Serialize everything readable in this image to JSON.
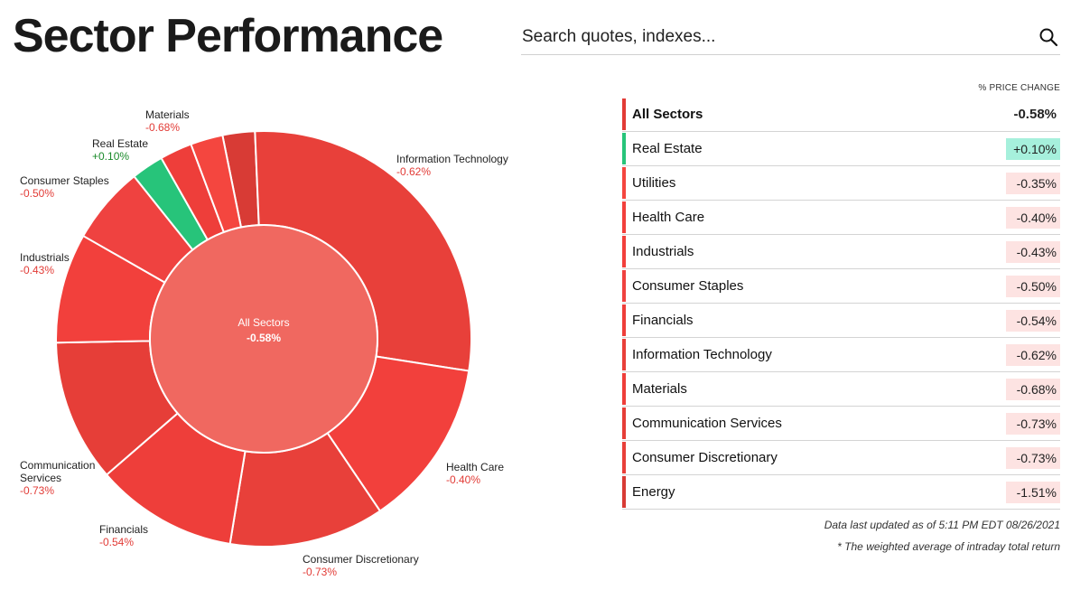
{
  "page": {
    "title": "Sector Performance"
  },
  "search": {
    "placeholder": "Search quotes, indexes..."
  },
  "chart_data": {
    "type": "pie",
    "center": {
      "label": "All Sectors",
      "value": "-0.58%"
    },
    "categories": [
      "Energy",
      "Information Technology",
      "Health Care",
      "Consumer Discretionary",
      "Financials",
      "Communication Services",
      "Industrials",
      "Consumer Staples",
      "Real Estate",
      "Materials",
      "Utilities"
    ],
    "values": [
      2.5,
      28.0,
      13.0,
      12.0,
      11.0,
      11.0,
      8.5,
      6.0,
      2.5,
      2.5,
      2.5
    ],
    "changes": [
      "-1.51%",
      "-0.62%",
      "-0.40%",
      "-0.73%",
      "-0.54%",
      "-0.73%",
      "-0.43%",
      "-0.50%",
      "+0.10%",
      "-0.68%",
      "-0.35%"
    ],
    "labels": [
      {
        "name": "",
        "value": ""
      },
      {
        "name": "Information Technology",
        "value": "-0.62%"
      },
      {
        "name": "Health Care",
        "value": "-0.40%"
      },
      {
        "name": "Consumer Discretionary",
        "value": "-0.73%"
      },
      {
        "name": "Financials",
        "value": "-0.54%"
      },
      {
        "name": "Communication Services",
        "value": "-0.73%"
      },
      {
        "name": "Industrials",
        "value": "-0.43%"
      },
      {
        "name": "Consumer Staples",
        "value": "-0.50%"
      },
      {
        "name": "Real Estate",
        "value": "+0.10%"
      },
      {
        "name": "Materials",
        "value": "-0.68%"
      },
      {
        "name": "",
        "value": ""
      }
    ],
    "colors": [
      "#d83b35",
      "#e8403a",
      "#f2403c",
      "#e8403a",
      "#ee3e3a",
      "#e63e38",
      "#f2403c",
      "#ef4240",
      "#27c47a",
      "#ee3e3a",
      "#f4463f"
    ],
    "center_color": "#f06860"
  },
  "table": {
    "column_header": "% PRICE CHANGE",
    "header_row": {
      "name": "All Sectors",
      "value": "-0.58%",
      "bar_color": "#e23b36"
    },
    "rows": [
      {
        "name": "Real Estate",
        "value": "+0.10%",
        "bar_color": "#27c47a",
        "bg": "#a6f0dc"
      },
      {
        "name": "Utilities",
        "value": "-0.35%",
        "bar_color": "#f4463f",
        "bg": "#fde3e2"
      },
      {
        "name": "Health Care",
        "value": "-0.40%",
        "bar_color": "#f2403c",
        "bg": "#fde3e2"
      },
      {
        "name": "Industrials",
        "value": "-0.43%",
        "bar_color": "#f2403c",
        "bg": "#fde3e2"
      },
      {
        "name": "Consumer Staples",
        "value": "-0.50%",
        "bar_color": "#ef4240",
        "bg": "#fde3e2"
      },
      {
        "name": "Financials",
        "value": "-0.54%",
        "bar_color": "#ee3e3a",
        "bg": "#fde3e2"
      },
      {
        "name": "Information Technology",
        "value": "-0.62%",
        "bar_color": "#e8403a",
        "bg": "#fde3e2"
      },
      {
        "name": "Materials",
        "value": "-0.68%",
        "bar_color": "#ee3e3a",
        "bg": "#fde3e2"
      },
      {
        "name": "Communication Services",
        "value": "-0.73%",
        "bar_color": "#e63e38",
        "bg": "#fde3e2"
      },
      {
        "name": "Consumer Discretionary",
        "value": "-0.73%",
        "bar_color": "#e8403a",
        "bg": "#fde3e2"
      },
      {
        "name": "Energy",
        "value": "-1.51%",
        "bar_color": "#d83b35",
        "bg": "#fde3e2"
      }
    ]
  },
  "footer": {
    "updated": "Data last updated as of 5:11 PM EDT 08/26/2021",
    "note": "* The weighted average of intraday total return"
  },
  "icons": {
    "search": "search-icon"
  }
}
